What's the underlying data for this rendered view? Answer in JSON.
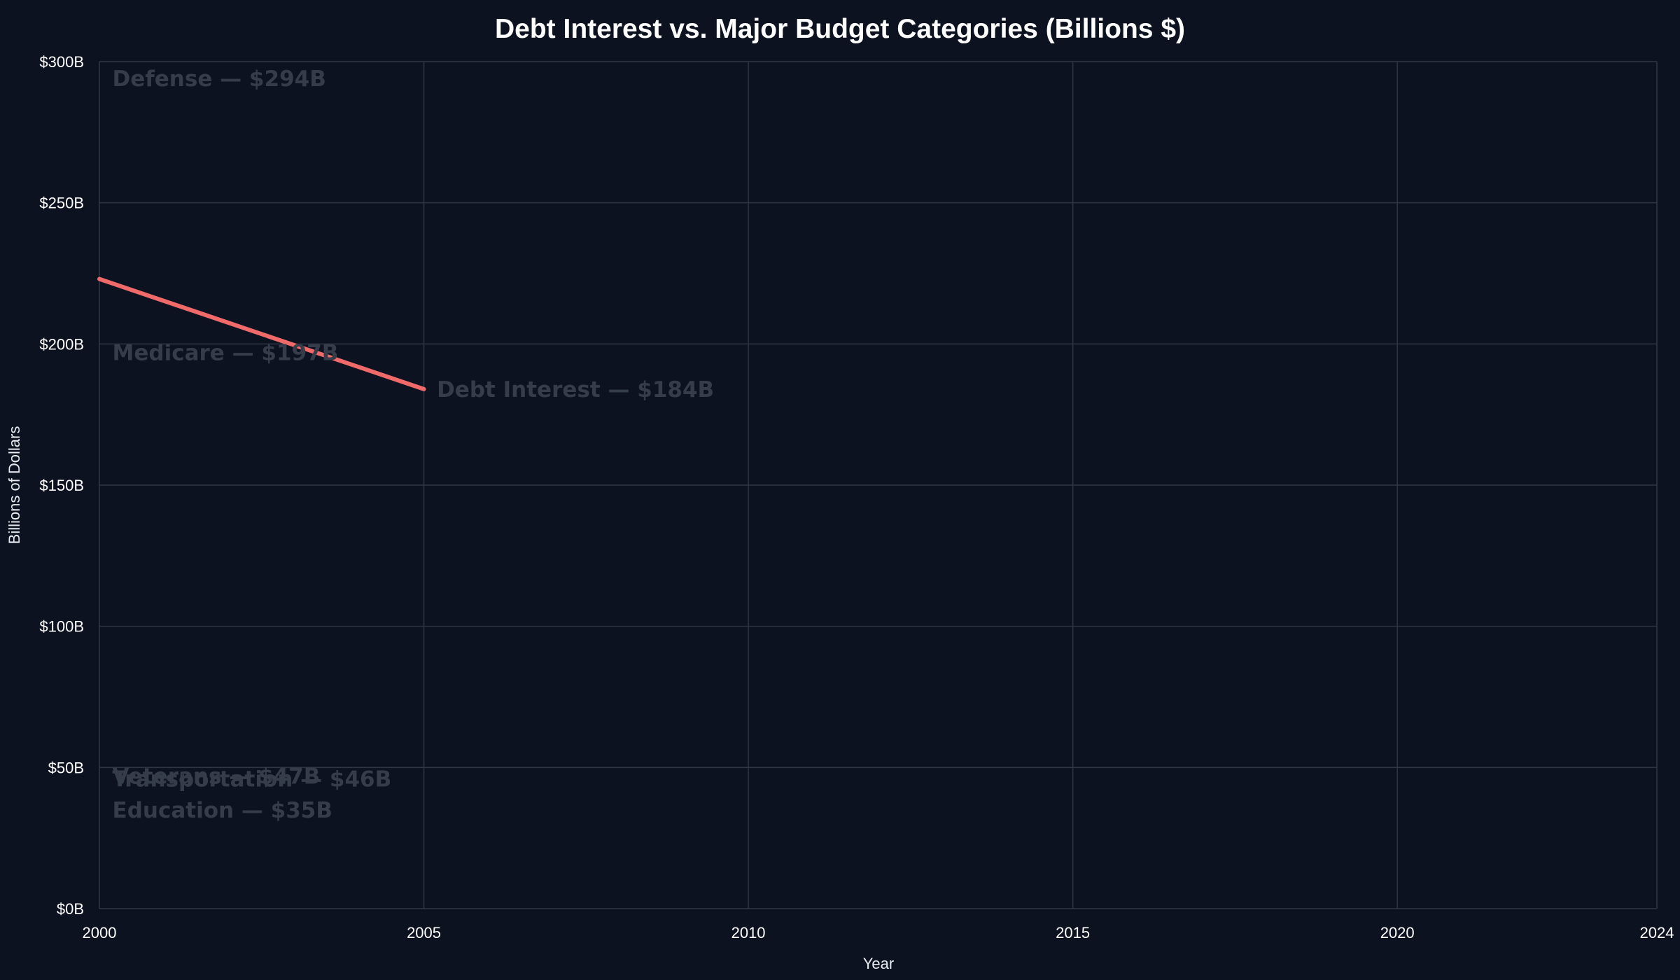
{
  "chart_data": {
    "type": "line",
    "title": "Debt Interest vs. Major Budget Categories (Billions $)",
    "xlabel": "Year",
    "ylabel": "Billions of Dollars",
    "xlim": [
      2000,
      2024
    ],
    "ylim": [
      0,
      300
    ],
    "x_ticks": [
      2000,
      2005,
      2010,
      2015,
      2020,
      2024
    ],
    "x_tick_labels": [
      "2000",
      "2005",
      "2010",
      "2015",
      "2020",
      "2024"
    ],
    "y_ticks": [
      0,
      50,
      100,
      150,
      200,
      250,
      300
    ],
    "y_tick_labels": [
      "$0B",
      "$50B",
      "$100B",
      "$150B",
      "$200B",
      "$250B",
      "$300B"
    ],
    "grid": true,
    "series": [
      {
        "x": [
          2000,
          2005
        ],
        "values": [
          223,
          184
        ],
        "color": "#f06a6a"
      }
    ],
    "annotations": [
      {
        "text": "Defense — $294B",
        "x": 2000.2,
        "y": 294,
        "color": "#353c4a"
      },
      {
        "text": "Medicare — $197B",
        "x": 2000.2,
        "y": 197,
        "color": "#353c4a"
      },
      {
        "text": "Debt Interest — $184B",
        "x": 2005.2,
        "y": 184,
        "color": "#353c4a"
      },
      {
        "text": "Veterans — $47B",
        "x": 2000.2,
        "y": 47,
        "color": "#353c4a"
      },
      {
        "text": "Transportation — $46B",
        "x": 2000.2,
        "y": 46,
        "color": "#353c4a"
      },
      {
        "text": "Education — $35B",
        "x": 2000.2,
        "y": 35,
        "color": "#353c4a"
      }
    ]
  }
}
